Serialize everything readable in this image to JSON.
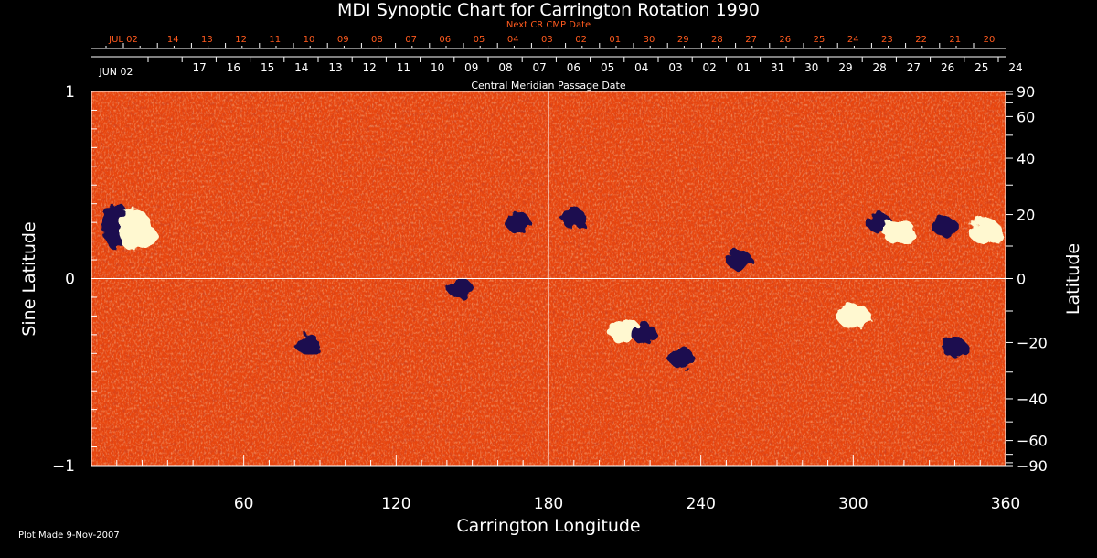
{
  "title": "MDI Synoptic Chart for Carrington Rotation 1990",
  "next_cr_label": "Next CR CMP Date",
  "cmp_label": "Central Meridian Passage Date",
  "plot_made": "Plot Made  9-Nov-2007",
  "colors": {
    "background": "#000000",
    "map_base": "#e8460f",
    "positive_flux": "#fff8d0",
    "negative_flux": "#1a1050",
    "axis": "#ffffff",
    "next_cr_text": "#ff5a1e"
  },
  "chart_data": {
    "type": "heatmap",
    "title": "MDI Synoptic Chart for Carrington Rotation 1990",
    "xlabel": "Carrington Longitude",
    "ylabel_left": "Sine Latitude",
    "ylabel_right": "Latitude",
    "xlim": [
      0,
      360
    ],
    "ylim": [
      -1,
      1
    ],
    "x_ticks": [
      60,
      120,
      180,
      240,
      300,
      360
    ],
    "y_ticks_left": [
      {
        "value": 1,
        "label": "1"
      },
      {
        "value": 0,
        "label": "0"
      },
      {
        "value": -1,
        "label": "−1"
      }
    ],
    "y_ticks_right": [
      "90",
      "60",
      "40",
      "20",
      "0",
      "−20",
      "−40",
      "−60",
      "−90"
    ],
    "y_ticks_right_deg": [
      90,
      60,
      40,
      20,
      0,
      -20,
      -40,
      -60,
      -90
    ],
    "next_cr_dates": [
      "JUL 02",
      "14",
      "13",
      "12",
      "11",
      "10",
      "09",
      "08",
      "07",
      "06",
      "05",
      "04",
      "03",
      "02",
      "01",
      "30",
      "29",
      "28",
      "27",
      "26",
      "25",
      "24",
      "23",
      "22",
      "21",
      "20"
    ],
    "cmp_dates": [
      "JUN 02",
      "17",
      "16",
      "15",
      "14",
      "13",
      "12",
      "11",
      "10",
      "09",
      "08",
      "07",
      "06",
      "05",
      "04",
      "03",
      "02",
      "01",
      "31",
      "30",
      "29",
      "28",
      "27",
      "26",
      "25",
      "24"
    ],
    "grid_lines": [
      "longitude 180",
      "sine latitude 0"
    ],
    "active_regions": [
      {
        "lon": 12,
        "sinlat": 0.28,
        "polarity": "bipole"
      },
      {
        "lon": 20,
        "sinlat": 0.22,
        "polarity": "positive"
      },
      {
        "lon": 85,
        "sinlat": -0.35,
        "polarity": "negative"
      },
      {
        "lon": 145,
        "sinlat": -0.05,
        "polarity": "negative"
      },
      {
        "lon": 168,
        "sinlat": 0.3,
        "polarity": "negative"
      },
      {
        "lon": 190,
        "sinlat": 0.32,
        "polarity": "negative"
      },
      {
        "lon": 210,
        "sinlat": -0.28,
        "polarity": "positive"
      },
      {
        "lon": 218,
        "sinlat": -0.3,
        "polarity": "negative"
      },
      {
        "lon": 232,
        "sinlat": -0.42,
        "polarity": "negative"
      },
      {
        "lon": 255,
        "sinlat": 0.1,
        "polarity": "negative"
      },
      {
        "lon": 310,
        "sinlat": 0.3,
        "polarity": "negative"
      },
      {
        "lon": 318,
        "sinlat": 0.25,
        "polarity": "positive"
      },
      {
        "lon": 336,
        "sinlat": 0.28,
        "polarity": "negative"
      },
      {
        "lon": 352,
        "sinlat": 0.25,
        "polarity": "positive"
      },
      {
        "lon": 340,
        "sinlat": -0.37,
        "polarity": "negative"
      },
      {
        "lon": 300,
        "sinlat": -0.2,
        "polarity": "positive"
      }
    ]
  }
}
